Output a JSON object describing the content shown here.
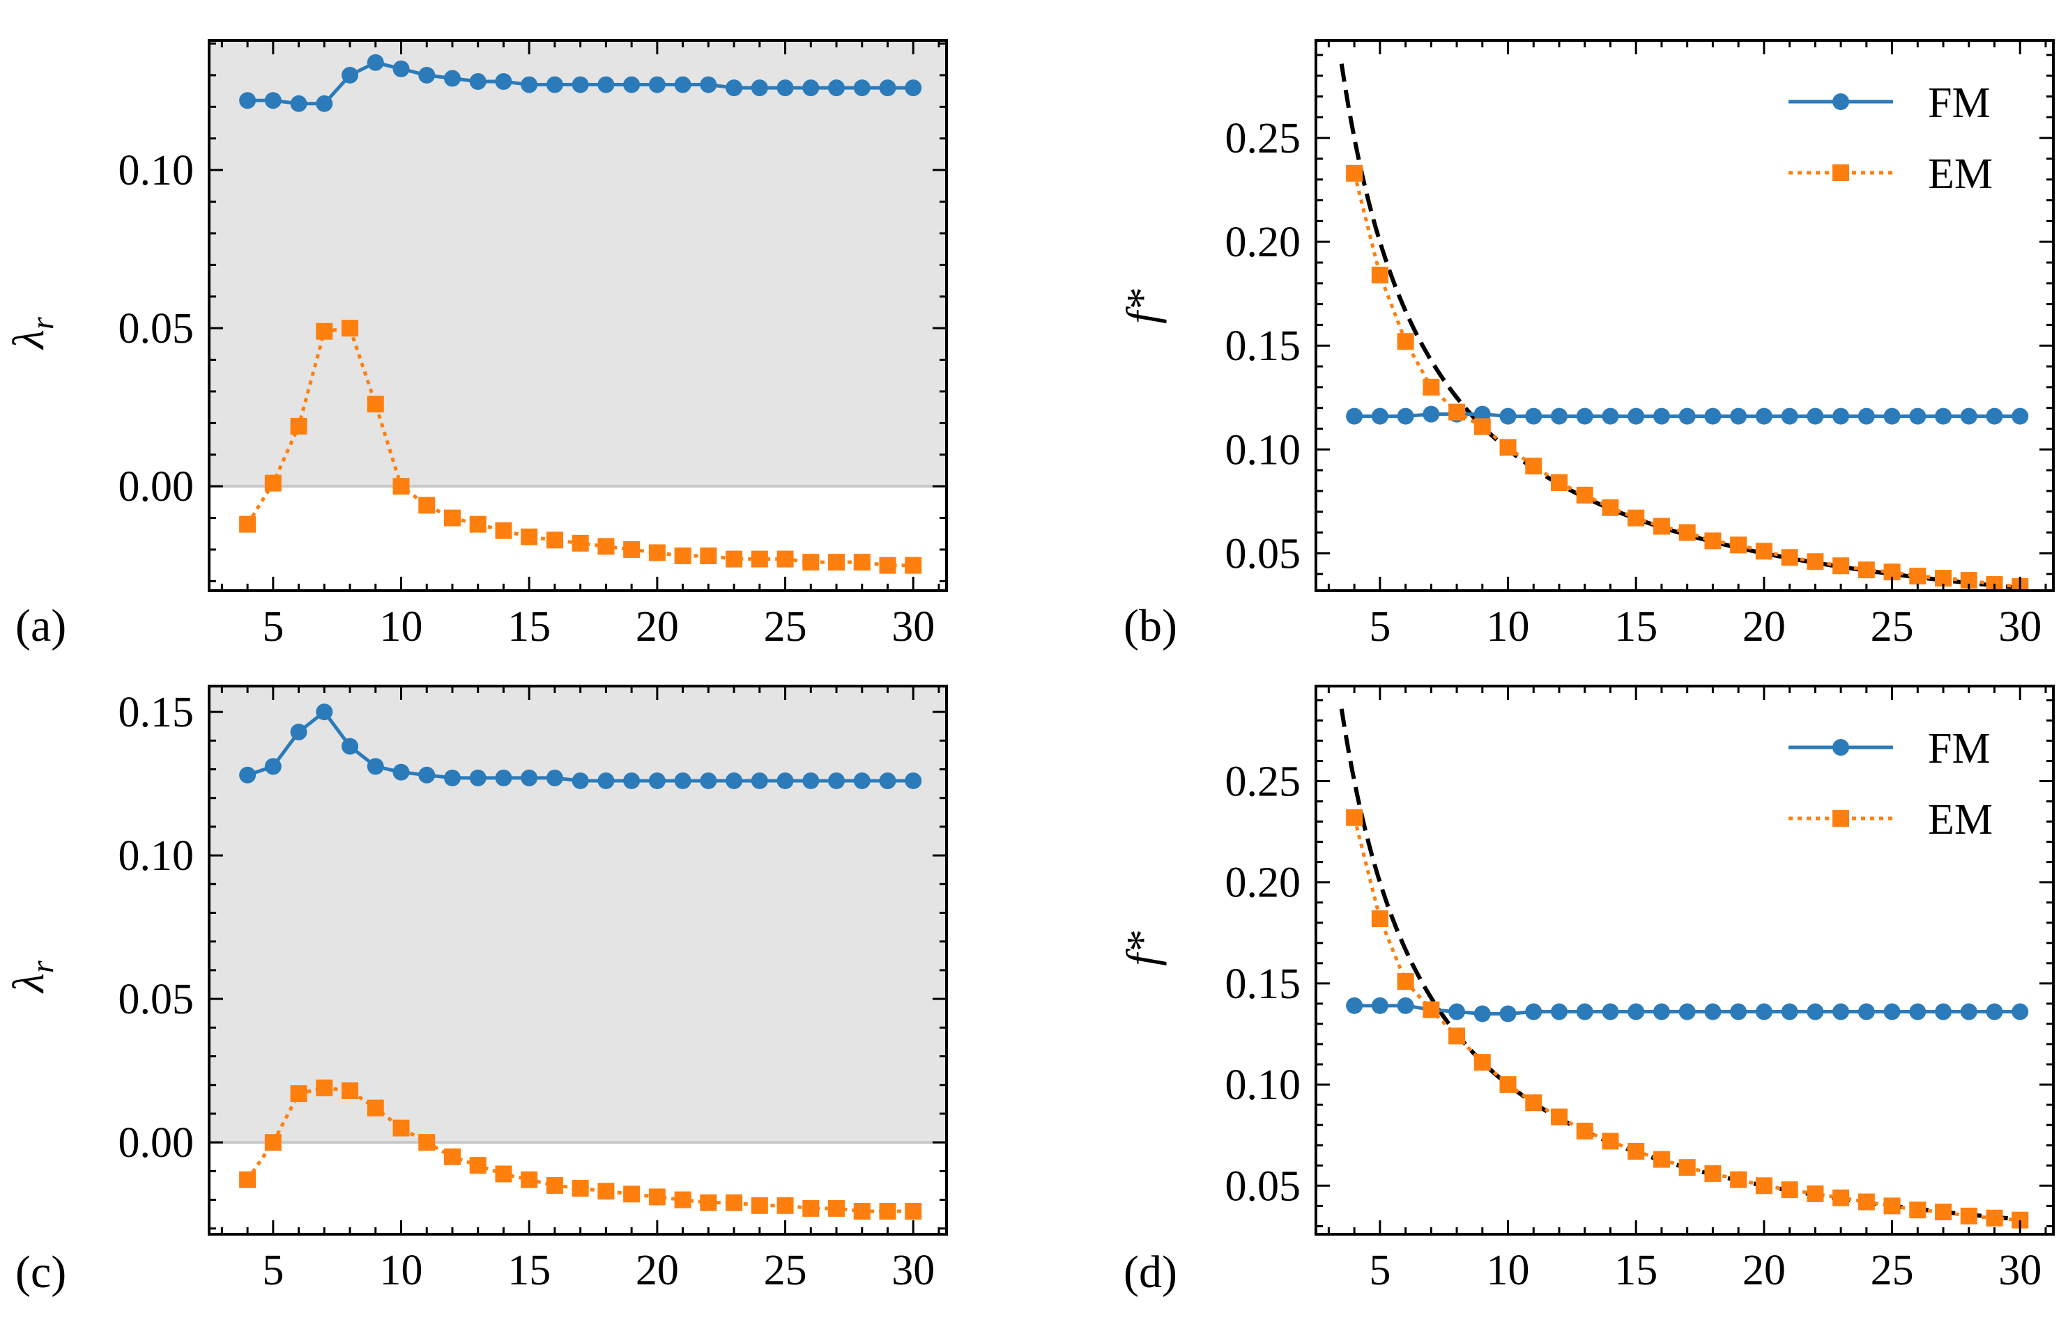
{
  "chart_data": [
    {
      "panel": "(a)",
      "type": "line",
      "ylabel": "λ",
      "ylabel_sub": "r",
      "x_ticks": [
        5,
        10,
        15,
        20,
        25,
        30
      ],
      "y_ticks": [
        0.0,
        0.05,
        0.1
      ],
      "xlim": [
        2.5,
        31.3
      ],
      "ylim": [
        -0.033,
        0.141
      ],
      "shaded_region": {
        "from": 0.0,
        "to": 0.141,
        "color": "#e4e4e4"
      },
      "x": [
        4,
        5,
        6,
        7,
        8,
        9,
        10,
        11,
        12,
        13,
        14,
        15,
        16,
        17,
        18,
        19,
        20,
        21,
        22,
        23,
        24,
        25,
        26,
        27,
        28,
        29,
        30
      ],
      "series": [
        {
          "name": "FM",
          "color": "#2b7bba",
          "marker": "circle",
          "style": "solid",
          "values": [
            0.122,
            0.122,
            0.121,
            0.121,
            0.13,
            0.134,
            0.132,
            0.13,
            0.129,
            0.128,
            0.128,
            0.127,
            0.127,
            0.127,
            0.127,
            0.127,
            0.127,
            0.127,
            0.127,
            0.126,
            0.126,
            0.126,
            0.126,
            0.126,
            0.126,
            0.126,
            0.126
          ]
        },
        {
          "name": "EM",
          "color": "#ff7f0e",
          "marker": "square",
          "style": "dotted",
          "values": [
            -0.012,
            0.001,
            0.019,
            0.049,
            0.05,
            0.026,
            0.0,
            -0.006,
            -0.01,
            -0.012,
            -0.014,
            -0.016,
            -0.017,
            -0.018,
            -0.019,
            -0.02,
            -0.021,
            -0.022,
            -0.022,
            -0.023,
            -0.023,
            -0.023,
            -0.024,
            -0.024,
            -0.024,
            -0.025,
            -0.025
          ]
        }
      ]
    },
    {
      "panel": "(b)",
      "type": "line",
      "ylabel": "f*",
      "x_ticks": [
        5,
        10,
        15,
        20,
        25,
        30
      ],
      "y_ticks": [
        0.05,
        0.1,
        0.15,
        0.2,
        0.25
      ],
      "xlim": [
        2.5,
        31.3
      ],
      "ylim": [
        0.032,
        0.297
      ],
      "legend": {
        "position": "top-right",
        "entries": [
          "FM",
          "EM"
        ]
      },
      "x": [
        4,
        5,
        6,
        7,
        8,
        9,
        10,
        11,
        12,
        13,
        14,
        15,
        16,
        17,
        18,
        19,
        20,
        21,
        22,
        23,
        24,
        25,
        26,
        27,
        28,
        29,
        30
      ],
      "series": [
        {
          "name": "FM",
          "color": "#2b7bba",
          "marker": "circle",
          "style": "solid",
          "values": [
            0.116,
            0.116,
            0.116,
            0.117,
            0.117,
            0.117,
            0.116,
            0.116,
            0.116,
            0.116,
            0.116,
            0.116,
            0.116,
            0.116,
            0.116,
            0.116,
            0.116,
            0.116,
            0.116,
            0.116,
            0.116,
            0.116,
            0.116,
            0.116,
            0.116,
            0.116,
            0.116
          ]
        },
        {
          "name": "EM",
          "color": "#ff7f0e",
          "marker": "square",
          "style": "dotted",
          "values": [
            0.233,
            0.184,
            0.152,
            0.13,
            0.118,
            0.111,
            0.101,
            0.092,
            0.084,
            0.078,
            0.072,
            0.067,
            0.063,
            0.06,
            0.056,
            0.054,
            0.051,
            0.048,
            0.046,
            0.044,
            0.042,
            0.041,
            0.039,
            0.038,
            0.037,
            0.035,
            0.034
          ]
        }
      ],
      "reference_curve": {
        "style": "dashed",
        "color": "#000000",
        "formula": "1/x",
        "x_range": [
          3.5,
          30
        ]
      }
    },
    {
      "panel": "(c)",
      "type": "line",
      "ylabel": "λ",
      "ylabel_sub": "r",
      "x_ticks": [
        5,
        10,
        15,
        20,
        25,
        30
      ],
      "y_ticks": [
        0.0,
        0.05,
        0.1,
        0.15
      ],
      "xlim": [
        2.5,
        31.3
      ],
      "ylim": [
        -0.032,
        0.159
      ],
      "shaded_region": {
        "from": 0.0,
        "to": 0.159,
        "color": "#e4e4e4"
      },
      "x": [
        4,
        5,
        6,
        7,
        8,
        9,
        10,
        11,
        12,
        13,
        14,
        15,
        16,
        17,
        18,
        19,
        20,
        21,
        22,
        23,
        24,
        25,
        26,
        27,
        28,
        29,
        30
      ],
      "series": [
        {
          "name": "FM",
          "color": "#2b7bba",
          "marker": "circle",
          "style": "solid",
          "values": [
            0.128,
            0.131,
            0.143,
            0.15,
            0.138,
            0.131,
            0.129,
            0.128,
            0.127,
            0.127,
            0.127,
            0.127,
            0.127,
            0.126,
            0.126,
            0.126,
            0.126,
            0.126,
            0.126,
            0.126,
            0.126,
            0.126,
            0.126,
            0.126,
            0.126,
            0.126,
            0.126
          ]
        },
        {
          "name": "EM",
          "color": "#ff7f0e",
          "marker": "square",
          "style": "dotted",
          "values": [
            -0.013,
            0.0,
            0.017,
            0.019,
            0.018,
            0.012,
            0.005,
            0.0,
            -0.005,
            -0.008,
            -0.011,
            -0.013,
            -0.015,
            -0.016,
            -0.017,
            -0.018,
            -0.019,
            -0.02,
            -0.021,
            -0.021,
            -0.022,
            -0.022,
            -0.023,
            -0.023,
            -0.024,
            -0.024,
            -0.024
          ]
        }
      ]
    },
    {
      "panel": "(d)",
      "type": "line",
      "ylabel": "f*",
      "x_ticks": [
        5,
        10,
        15,
        20,
        25,
        30
      ],
      "y_ticks": [
        0.05,
        0.1,
        0.15,
        0.2,
        0.25
      ],
      "xlim": [
        2.5,
        31.3
      ],
      "ylim": [
        0.026,
        0.297
      ],
      "legend": {
        "position": "top-right",
        "entries": [
          "FM",
          "EM"
        ]
      },
      "x": [
        4,
        5,
        6,
        7,
        8,
        9,
        10,
        11,
        12,
        13,
        14,
        15,
        16,
        17,
        18,
        19,
        20,
        21,
        22,
        23,
        24,
        25,
        26,
        27,
        28,
        29,
        30
      ],
      "series": [
        {
          "name": "FM",
          "color": "#2b7bba",
          "marker": "circle",
          "style": "solid",
          "values": [
            0.139,
            0.139,
            0.139,
            0.137,
            0.136,
            0.135,
            0.135,
            0.136,
            0.136,
            0.136,
            0.136,
            0.136,
            0.136,
            0.136,
            0.136,
            0.136,
            0.136,
            0.136,
            0.136,
            0.136,
            0.136,
            0.136,
            0.136,
            0.136,
            0.136,
            0.136,
            0.136
          ]
        },
        {
          "name": "EM",
          "color": "#ff7f0e",
          "marker": "square",
          "style": "dotted",
          "values": [
            0.232,
            0.182,
            0.151,
            0.137,
            0.124,
            0.111,
            0.1,
            0.091,
            0.084,
            0.077,
            0.072,
            0.067,
            0.063,
            0.059,
            0.056,
            0.053,
            0.05,
            0.048,
            0.046,
            0.044,
            0.042,
            0.04,
            0.038,
            0.037,
            0.035,
            0.034,
            0.033
          ]
        }
      ],
      "reference_curve": {
        "style": "dashed",
        "color": "#000000",
        "formula": "1/x",
        "x_range": [
          3.5,
          30
        ]
      }
    }
  ]
}
